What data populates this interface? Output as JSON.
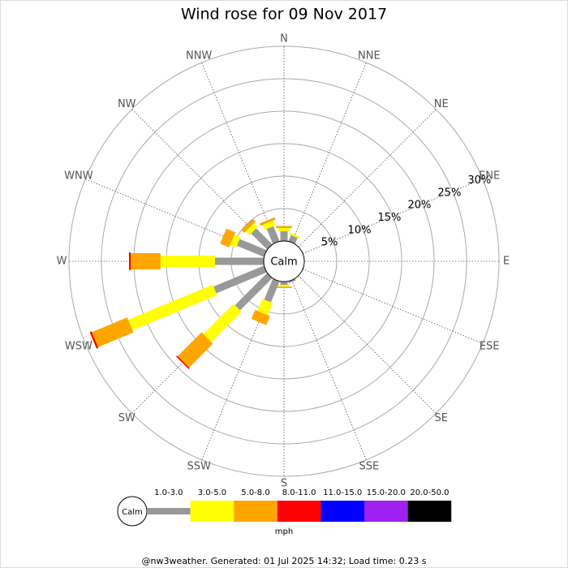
{
  "chart_data": {
    "type": "windrose",
    "title": "Wind rose for 09 Nov 2017",
    "directions": [
      "N",
      "NNE",
      "NE",
      "ENE",
      "E",
      "ESE",
      "SE",
      "SSE",
      "S",
      "SSW",
      "SW",
      "WSW",
      "W",
      "WNW",
      "NW",
      "NNW"
    ],
    "calm_label": "Calm",
    "unit": "mph",
    "rlim": [
      0,
      30
    ],
    "rticks": [
      {
        "value": 5,
        "label": "5%"
      },
      {
        "value": 10,
        "label": "10%"
      },
      {
        "value": 15,
        "label": "15%"
      },
      {
        "value": 20,
        "label": "20%"
      },
      {
        "value": 25,
        "label": "25%"
      },
      {
        "value": 30,
        "label": "30%"
      }
    ],
    "series": [
      {
        "name": "1.0-3.0",
        "color": "#999999",
        "values": [
          1.5,
          1,
          0,
          0,
          0,
          0,
          0,
          0.3,
          0.5,
          3.5,
          7,
          8.4,
          7.5,
          4.5,
          3.5,
          2.5
        ]
      },
      {
        "name": "3.0-5.0",
        "color": "#ffff00",
        "values": [
          0.5,
          0.3,
          0,
          0,
          0,
          0,
          0,
          0,
          0.3,
          2,
          6.6,
          14.1,
          8.4,
          1,
          0.8,
          0.8
        ]
      },
      {
        "name": "5.0-8.0",
        "color": "#ffa500",
        "values": [
          0.3,
          0,
          0,
          0,
          0,
          0,
          0,
          0,
          0.2,
          1.5,
          5.2,
          5.9,
          4.6,
          1.5,
          0.6,
          0.4
        ]
      },
      {
        "name": "8.0-11.0",
        "color": "#ff0000",
        "values": [
          0,
          0,
          0,
          0,
          0,
          0,
          0,
          0,
          0,
          0,
          0.2,
          0.3,
          0.25,
          0,
          0,
          0
        ]
      },
      {
        "name": "11.0-15.0",
        "color": "#0000ff",
        "values": [
          0,
          0,
          0,
          0,
          0,
          0,
          0,
          0,
          0,
          0,
          0,
          0,
          0,
          0,
          0,
          0
        ]
      },
      {
        "name": "15.0-20.0",
        "color": "#a020f0",
        "values": [
          0,
          0,
          0,
          0,
          0,
          0,
          0,
          0,
          0,
          0,
          0,
          0,
          0,
          0,
          0,
          0
        ]
      },
      {
        "name": "20.0-50.0",
        "color": "#000000",
        "values": [
          0,
          0,
          0,
          0,
          0,
          0,
          0,
          0,
          0,
          0,
          0,
          0,
          0,
          0,
          0,
          0
        ]
      }
    ]
  },
  "footer": "@nw3weather. Generated: 01 Jul 2025 14:32; Load time: 0.23 s"
}
